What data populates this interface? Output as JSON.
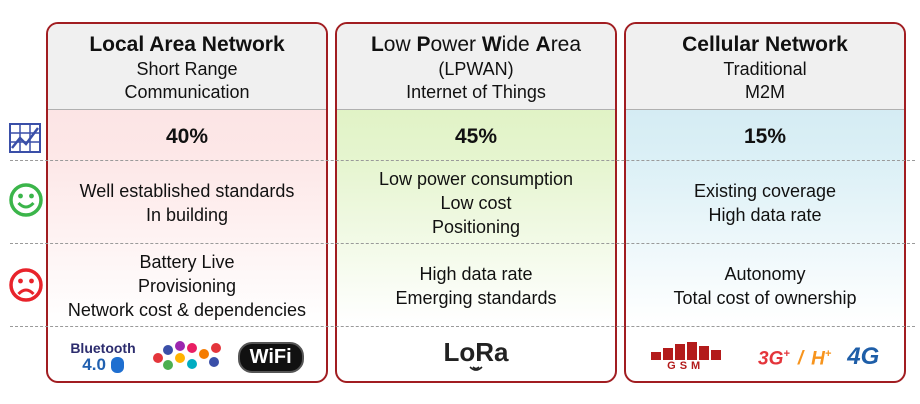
{
  "columns": [
    {
      "title": "Local Area Network",
      "subtitle": [
        "Short Range",
        "Communication"
      ],
      "share": "40%",
      "pros": [
        "Well established standards",
        "In building"
      ],
      "cons": [
        "Battery Live",
        "Provisioning",
        "Network cost & dependencies"
      ],
      "logos": {
        "bluetooth": "Bluetooth",
        "bluetooth_version": "4.0",
        "wifi": "WiFi"
      }
    },
    {
      "title_parts": [
        {
          "t": "L",
          "bold": true
        },
        {
          "t": "ow ",
          "bold": false
        },
        {
          "t": "P",
          "bold": true
        },
        {
          "t": "ower ",
          "bold": false
        },
        {
          "t": "W",
          "bold": true
        },
        {
          "t": "ide ",
          "bold": false
        },
        {
          "t": "A",
          "bold": true
        },
        {
          "t": "rea",
          "bold": false
        }
      ],
      "subtitle": [
        "(LPWAN)",
        "Internet of Things"
      ],
      "share": "45%",
      "pros": [
        "Low power consumption",
        "Low cost",
        "Positioning"
      ],
      "cons": [
        "High data rate",
        "Emerging standards"
      ],
      "logos": {
        "lora": "LoRa"
      }
    },
    {
      "title": "Cellular Network",
      "subtitle": [
        "Traditional",
        "M2M"
      ],
      "share": "15%",
      "pros": [
        "Existing coverage",
        "High data rate"
      ],
      "cons": [
        "Autonomy",
        "Total cost of ownership"
      ],
      "logos": {
        "gsm": "GSM",
        "threeg": "3G",
        "threeg_plus": "+",
        "slash": "/",
        "hplus": "H",
        "hplus_plus": "+",
        "fourg": "4G"
      }
    }
  ],
  "colors": {
    "border": "#a11d21",
    "smile": "#3bb54a",
    "frown": "#e8232b",
    "chart_icon": "#3a4fa8"
  }
}
